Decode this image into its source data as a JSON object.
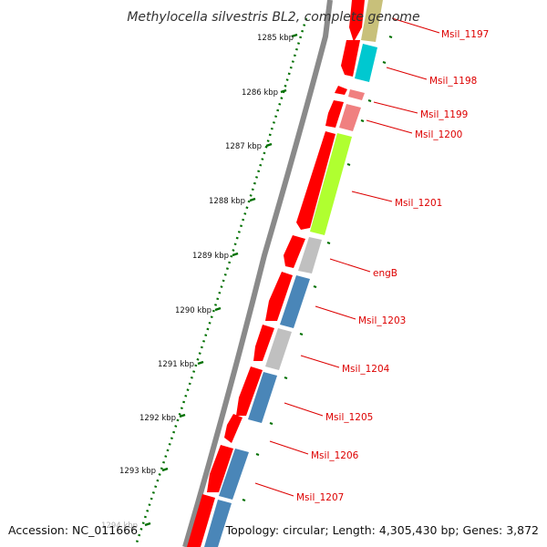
{
  "map": {
    "title": "Methylocella silvestris BL2, complete genome",
    "accession": "Accession: NC_011666",
    "summary": "Topology: circular; Length: 4,305,430 bp; Genes: 3,872",
    "colors": {
      "backbone": "#8a8a8a",
      "forward_strand": "#ff0000",
      "ruler": "#007000",
      "label": "#dd0000"
    },
    "ruler_labels": [
      "1285 kbp",
      "1286 kbp",
      "1287 kbp",
      "1288 kbp",
      "1289 kbp",
      "1290 kbp",
      "1291 kbp",
      "1292 kbp",
      "1293 kbp",
      "1294 kbp"
    ],
    "gene_labels": [
      "Msil_1197",
      "Msil_1198",
      "Msil_1199",
      "Msil_1200",
      "Msil_1201",
      "engB",
      "Msil_1203",
      "Msil_1204",
      "Msil_1205",
      "Msil_1206",
      "Msil_1207"
    ],
    "legend_colors": [
      "#c8c07a",
      "#00c8d0",
      "#f08080",
      "#f08080",
      "#b0ff30",
      "#c0c0c0",
      "#4a86b8",
      "#c0c0c0",
      "#4a86b8",
      "#4a86b8",
      "#4a86b8"
    ]
  }
}
